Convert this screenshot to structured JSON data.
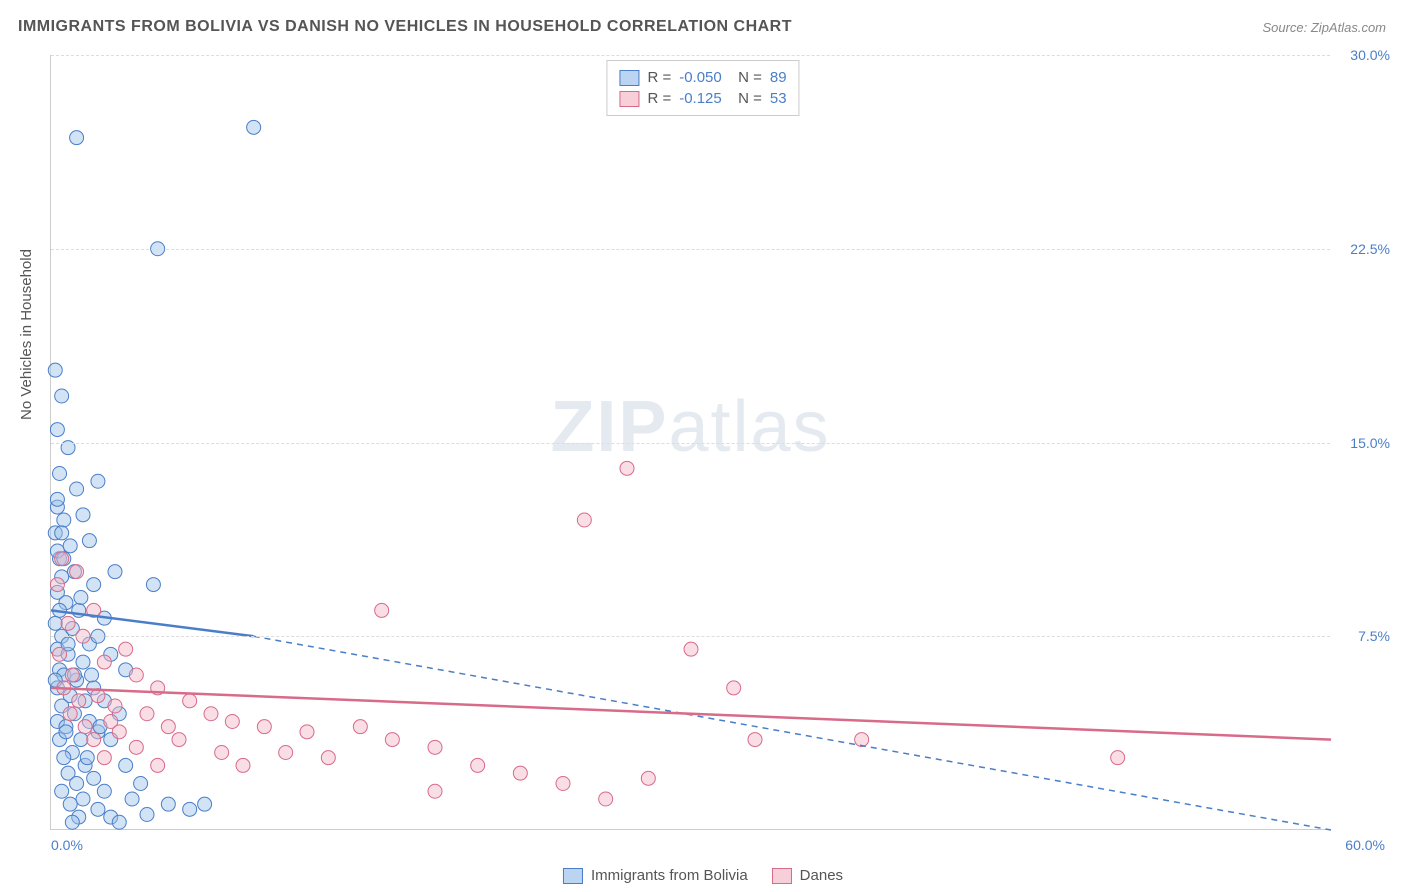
{
  "title": "IMMIGRANTS FROM BOLIVIA VS DANISH NO VEHICLES IN HOUSEHOLD CORRELATION CHART",
  "source": "Source: ZipAtlas.com",
  "watermark": {
    "bold": "ZIP",
    "light": "atlas"
  },
  "ylabel": "No Vehicles in Household",
  "chart": {
    "type": "scatter-correlation",
    "background_color": "#ffffff",
    "grid_color": "#dddddd",
    "axis_color": "#cccccc",
    "tick_color": "#4a7ec9",
    "xlim": [
      0.0,
      60.0
    ],
    "ylim": [
      0.0,
      30.0
    ],
    "yticks": [
      7.5,
      15.0,
      22.5,
      30.0
    ],
    "ytick_labels": [
      "7.5%",
      "15.0%",
      "22.5%",
      "30.0%"
    ],
    "xtick_left": "0.0%",
    "xtick_right": "60.0%",
    "title_fontsize": 16,
    "label_fontsize": 15,
    "tick_fontsize": 14,
    "marker_radius": 7,
    "marker_opacity": 0.45,
    "line_width": 2.5,
    "series": [
      {
        "name": "Immigrants from Bolivia",
        "color_fill": "#9bc2e8",
        "color_stroke": "#4a7ec9",
        "R": "-0.050",
        "N": "89",
        "trend_solid": {
          "x1": 0,
          "y1": 8.5,
          "x2": 9.5,
          "y2": 7.5
        },
        "trend_dashed": {
          "x1": 9.5,
          "y1": 7.5,
          "x2": 60,
          "y2": 0.0
        },
        "points": [
          [
            0.2,
            17.8
          ],
          [
            0.5,
            16.8
          ],
          [
            0.3,
            15.5
          ],
          [
            0.8,
            14.8
          ],
          [
            0.4,
            13.8
          ],
          [
            1.2,
            13.2
          ],
          [
            0.3,
            12.5
          ],
          [
            0.6,
            12.0
          ],
          [
            1.5,
            12.2
          ],
          [
            0.2,
            11.5
          ],
          [
            0.9,
            11.0
          ],
          [
            1.8,
            11.2
          ],
          [
            0.4,
            10.5
          ],
          [
            1.1,
            10.0
          ],
          [
            0.5,
            9.8
          ],
          [
            2.0,
            9.5
          ],
          [
            0.3,
            9.2
          ],
          [
            2.2,
            13.5
          ],
          [
            0.7,
            8.8
          ],
          [
            1.3,
            8.5
          ],
          [
            2.5,
            8.2
          ],
          [
            0.2,
            8.0
          ],
          [
            3.0,
            10.0
          ],
          [
            0.5,
            7.5
          ],
          [
            1.0,
            7.8
          ],
          [
            1.8,
            7.2
          ],
          [
            0.3,
            7.0
          ],
          [
            2.2,
            7.5
          ],
          [
            0.8,
            6.8
          ],
          [
            4.8,
            9.5
          ],
          [
            1.5,
            6.5
          ],
          [
            0.4,
            6.2
          ],
          [
            2.8,
            6.8
          ],
          [
            0.6,
            6.0
          ],
          [
            1.2,
            5.8
          ],
          [
            3.5,
            6.2
          ],
          [
            0.3,
            5.5
          ],
          [
            2.0,
            5.5
          ],
          [
            0.9,
            5.2
          ],
          [
            1.6,
            5.0
          ],
          [
            0.5,
            4.8
          ],
          [
            2.5,
            5.0
          ],
          [
            1.1,
            4.5
          ],
          [
            0.3,
            4.2
          ],
          [
            1.8,
            4.2
          ],
          [
            3.2,
            4.5
          ],
          [
            0.7,
            4.0
          ],
          [
            2.2,
            3.8
          ],
          [
            1.4,
            3.5
          ],
          [
            0.4,
            3.5
          ],
          [
            2.8,
            3.5
          ],
          [
            1.0,
            3.0
          ],
          [
            0.6,
            2.8
          ],
          [
            1.6,
            2.5
          ],
          [
            3.5,
            2.5
          ],
          [
            0.8,
            2.2
          ],
          [
            2.0,
            2.0
          ],
          [
            1.2,
            1.8
          ],
          [
            4.2,
            1.8
          ],
          [
            0.5,
            1.5
          ],
          [
            2.5,
            1.5
          ],
          [
            1.5,
            1.2
          ],
          [
            3.8,
            1.2
          ],
          [
            0.9,
            1.0
          ],
          [
            2.2,
            0.8
          ],
          [
            5.5,
            1.0
          ],
          [
            1.3,
            0.5
          ],
          [
            4.5,
            0.6
          ],
          [
            6.5,
            0.8
          ],
          [
            2.8,
            0.5
          ],
          [
            7.2,
            1.0
          ],
          [
            1.0,
            0.3
          ],
          [
            3.2,
            0.3
          ],
          [
            0.3,
            10.8
          ],
          [
            0.6,
            10.5
          ],
          [
            1.4,
            9.0
          ],
          [
            0.4,
            8.5
          ],
          [
            1.9,
            6.0
          ],
          [
            0.2,
            5.8
          ],
          [
            0.7,
            3.8
          ],
          [
            1.7,
            2.8
          ],
          [
            1.2,
            26.8
          ],
          [
            9.5,
            27.2
          ],
          [
            5.0,
            22.5
          ],
          [
            0.5,
            11.5
          ],
          [
            0.3,
            12.8
          ],
          [
            0.8,
            7.2
          ],
          [
            1.1,
            6.0
          ],
          [
            2.3,
            4.0
          ]
        ]
      },
      {
        "name": "Danes",
        "color_fill": "#f2b8c6",
        "color_stroke": "#d86a8a",
        "R": "-0.125",
        "N": "53",
        "trend_solid": {
          "x1": 0,
          "y1": 5.5,
          "x2": 60,
          "y2": 3.5
        },
        "trend_dashed": null,
        "points": [
          [
            0.5,
            10.5
          ],
          [
            1.2,
            10.0
          ],
          [
            0.3,
            9.5
          ],
          [
            2.0,
            8.5
          ],
          [
            0.8,
            8.0
          ],
          [
            1.5,
            7.5
          ],
          [
            3.5,
            7.0
          ],
          [
            0.4,
            6.8
          ],
          [
            2.5,
            6.5
          ],
          [
            1.0,
            6.0
          ],
          [
            4.0,
            6.0
          ],
          [
            0.6,
            5.5
          ],
          [
            2.2,
            5.2
          ],
          [
            5.0,
            5.5
          ],
          [
            1.3,
            5.0
          ],
          [
            3.0,
            4.8
          ],
          [
            6.5,
            5.0
          ],
          [
            0.9,
            4.5
          ],
          [
            4.5,
            4.5
          ],
          [
            2.8,
            4.2
          ],
          [
            7.5,
            4.5
          ],
          [
            1.6,
            4.0
          ],
          [
            5.5,
            4.0
          ],
          [
            8.5,
            4.2
          ],
          [
            3.2,
            3.8
          ],
          [
            10.0,
            4.0
          ],
          [
            2.0,
            3.5
          ],
          [
            6.0,
            3.5
          ],
          [
            12.0,
            3.8
          ],
          [
            4.0,
            3.2
          ],
          [
            8.0,
            3.0
          ],
          [
            14.5,
            4.0
          ],
          [
            2.5,
            2.8
          ],
          [
            11.0,
            3.0
          ],
          [
            16.0,
            3.5
          ],
          [
            5.0,
            2.5
          ],
          [
            9.0,
            2.5
          ],
          [
            18.0,
            3.2
          ],
          [
            13.0,
            2.8
          ],
          [
            20.0,
            2.5
          ],
          [
            22.0,
            2.2
          ],
          [
            24.0,
            1.8
          ],
          [
            18.0,
            1.5
          ],
          [
            26.0,
            1.2
          ],
          [
            28.0,
            2.0
          ],
          [
            30.0,
            7.0
          ],
          [
            27.0,
            14.0
          ],
          [
            25.0,
            12.0
          ],
          [
            33.0,
            3.5
          ],
          [
            38.0,
            3.5
          ],
          [
            32.0,
            5.5
          ],
          [
            50.0,
            2.8
          ],
          [
            15.5,
            8.5
          ]
        ]
      }
    ]
  },
  "stats_legend": {
    "rows": [
      {
        "swatch": "blue",
        "R": "-0.050",
        "N": "89"
      },
      {
        "swatch": "pink",
        "R": "-0.125",
        "N": "53"
      }
    ]
  },
  "bottom_legend": [
    {
      "swatch": "blue",
      "label": "Immigrants from Bolivia"
    },
    {
      "swatch": "pink",
      "label": "Danes"
    }
  ]
}
